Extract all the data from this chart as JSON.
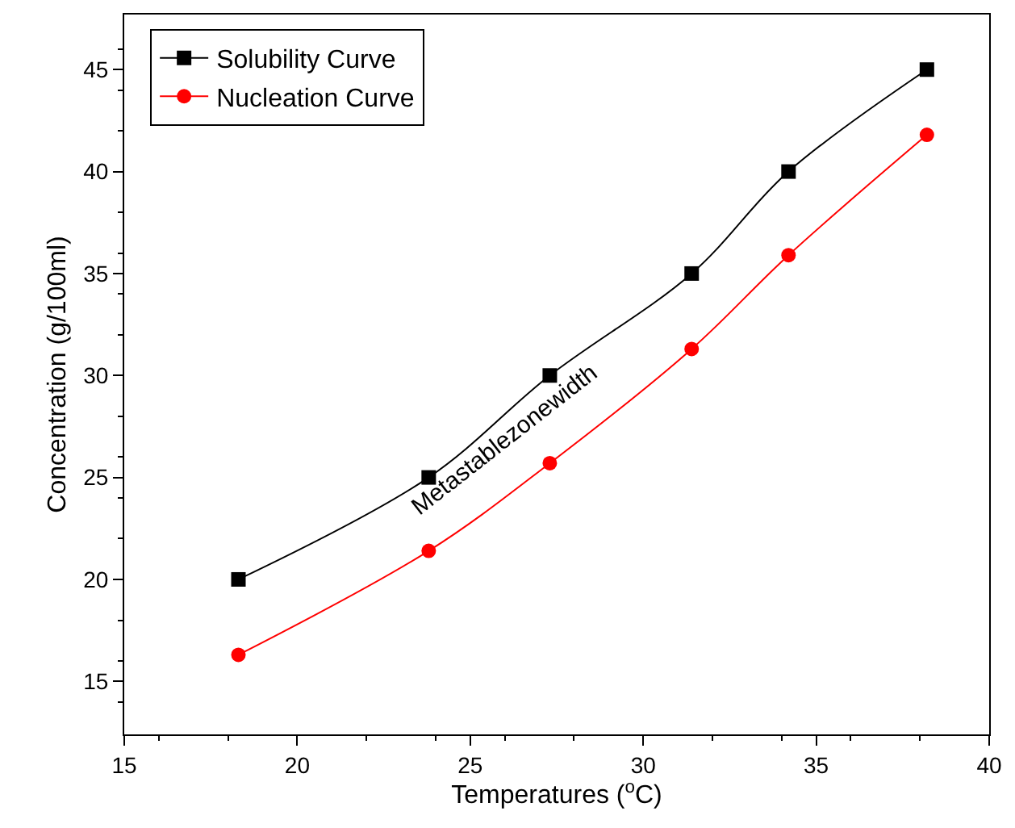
{
  "chart_data": {
    "type": "line",
    "xlabel": "Temperatures ($^{o}$C)",
    "ylabel": "Concentration (g/100ml)",
    "xlim": [
      15,
      40
    ],
    "xticks": [
      15,
      20,
      25,
      30,
      35,
      40
    ],
    "ylim": [
      12.4,
      47.7
    ],
    "yticks": [
      15,
      20,
      25,
      30,
      35,
      40,
      45
    ],
    "legend": "top left",
    "series": [
      {
        "name": "Solubility Curve",
        "color": "#000000",
        "marker": "square",
        "x": [
          18.3,
          23.8,
          27.3,
          31.4,
          34.2,
          38.2
        ],
        "values": [
          20,
          25,
          30,
          35,
          40,
          45
        ]
      },
      {
        "name": "Nucleation Curve",
        "color": "#ff0000",
        "marker": "circle",
        "x": [
          18.3,
          23.8,
          27.3,
          31.4,
          34.2,
          38.2
        ],
        "values": [
          16.3,
          21.4,
          25.7,
          31.3,
          35.9,
          41.8
        ]
      }
    ],
    "annotations": [
      "Metastablezonewidth"
    ]
  }
}
